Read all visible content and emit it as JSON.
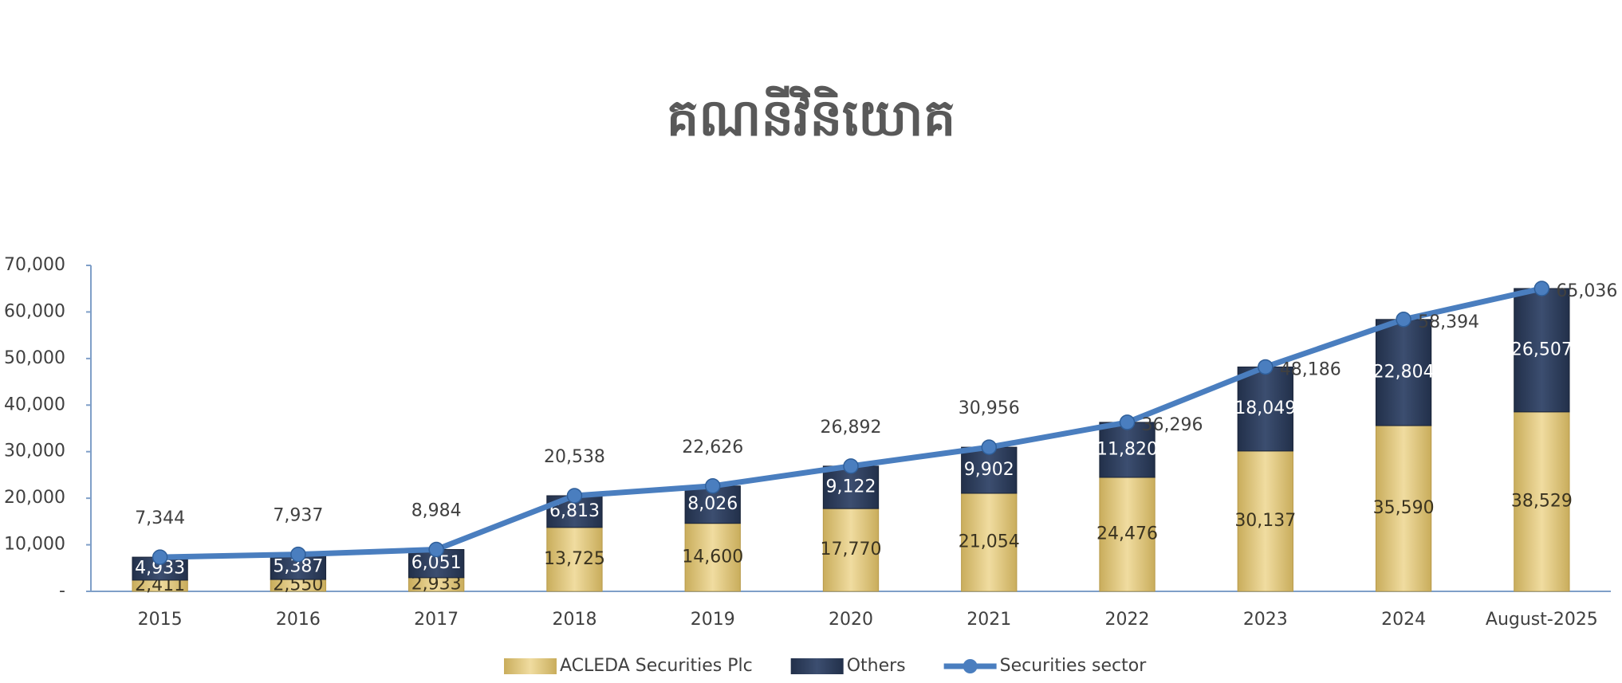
{
  "chart_data": {
    "type": "bar",
    "title": "គណនីវិនិយោគ",
    "categories": [
      "2015",
      "2016",
      "2017",
      "2018",
      "2019",
      "2020",
      "2021",
      "2022",
      "2023",
      "2024",
      "August-2025"
    ],
    "series": [
      {
        "name": "ACLEDA Securities Plc",
        "color": "#d8c07a",
        "values": [
          2411,
          2550,
          2933,
          13725,
          14600,
          17770,
          21054,
          24476,
          30137,
          35590,
          38529
        ],
        "value_labels": [
          "2,411",
          "2,550",
          "2,933",
          "13,725",
          "14,600",
          "17,770",
          "21,054",
          "24,476",
          "30,137",
          "35,590",
          "38,529"
        ]
      },
      {
        "name": "Others",
        "color": "#2c3b58",
        "values": [
          4933,
          5387,
          6051,
          6813,
          8026,
          9122,
          9902,
          11820,
          18049,
          22804,
          26507
        ],
        "value_labels": [
          "4,933",
          "5,387",
          "6,051",
          "6,813",
          "8,026",
          "9,122",
          "9,902",
          "11,820",
          "18,049",
          "22,804",
          "26,507"
        ]
      },
      {
        "name": "Securities sector",
        "type": "line",
        "color": "#4a7ebf",
        "values": [
          7344,
          7937,
          8984,
          20538,
          22626,
          26892,
          30956,
          36296,
          48186,
          58394,
          65036
        ],
        "value_labels": [
          "7,344",
          "7,937",
          "8,984",
          "20,538",
          "22,626",
          "26,892",
          "30,956",
          "36,296",
          "48,186",
          "58,394",
          "65,036"
        ]
      }
    ],
    "ylim": [
      0,
      70000
    ],
    "yticks": [
      {
        "value": 0,
        "label": "-"
      },
      {
        "value": 10000,
        "label": "10,000"
      },
      {
        "value": 20000,
        "label": "20,000"
      },
      {
        "value": 30000,
        "label": "30,000"
      },
      {
        "value": 40000,
        "label": "40,000"
      },
      {
        "value": 50000,
        "label": "50,000"
      },
      {
        "value": 60000,
        "label": "60,000"
      },
      {
        "value": 70000,
        "label": "70,000"
      }
    ],
    "grid": false
  }
}
